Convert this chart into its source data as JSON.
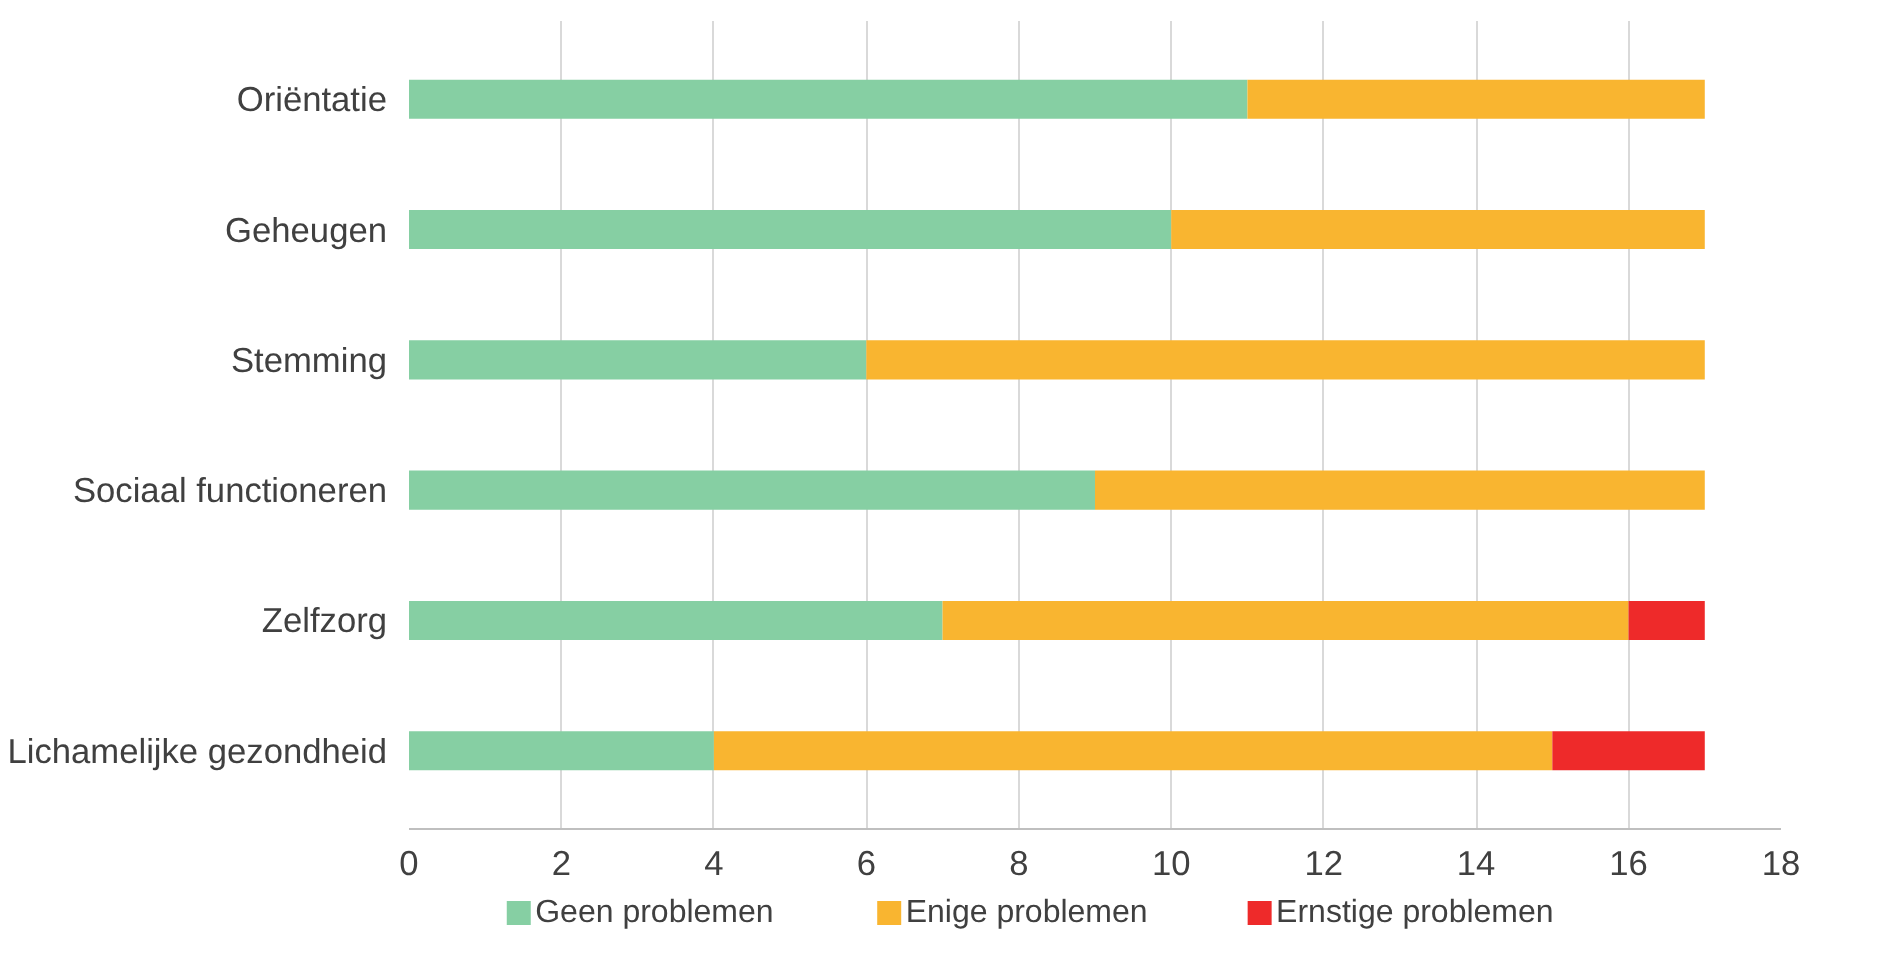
{
  "chart_data": {
    "type": "bar",
    "orientation": "horizontal",
    "stacked": true,
    "categories": [
      "Oriëntatie",
      "Geheugen",
      "Stemming",
      "Sociaal functioneren",
      "Zelfzorg",
      "Lichamelijke gezondheid"
    ],
    "series": [
      {
        "name": "Geen problemen",
        "color": "#86cfa3",
        "values": [
          11,
          10,
          6,
          9,
          7,
          4
        ]
      },
      {
        "name": "Enige problemen",
        "color": "#f9b530",
        "values": [
          6,
          7,
          11,
          8,
          9,
          11
        ]
      },
      {
        "name": "Ernstige problemen",
        "color": "#ee2a2a",
        "values": [
          0,
          0,
          0,
          0,
          1,
          2
        ]
      }
    ],
    "xlim": [
      0,
      18
    ],
    "xticks": [
      0,
      2,
      4,
      6,
      8,
      10,
      12,
      14,
      16,
      18
    ],
    "grid": "x",
    "legend": "bottom"
  }
}
